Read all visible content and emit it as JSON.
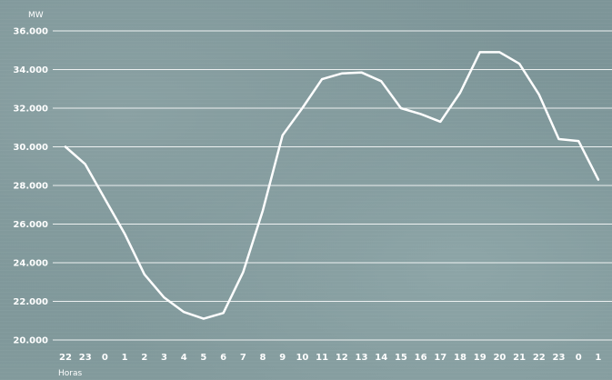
{
  "chart_data": {
    "type": "line",
    "title": "",
    "ylabel": "MW",
    "xlabel": "Horas",
    "ylim": [
      20000,
      36000
    ],
    "y_ticks": [
      20000,
      22000,
      24000,
      26000,
      28000,
      30000,
      32000,
      34000,
      36000
    ],
    "y_tick_labels": [
      "20.000",
      "22.000",
      "24.000",
      "26.000",
      "28.000",
      "30.000",
      "32.000",
      "34.000",
      "36.000"
    ],
    "categories": [
      "22",
      "23",
      "0",
      "1",
      "2",
      "3",
      "4",
      "5",
      "6",
      "7",
      "8",
      "9",
      "10",
      "11",
      "12",
      "13",
      "14",
      "15",
      "16",
      "17",
      "18",
      "19",
      "20",
      "21",
      "22",
      "23",
      "0",
      "1"
    ],
    "grid": true,
    "series": [
      {
        "values": [
          30000,
          29100,
          27300,
          25500,
          23400,
          22200,
          21450,
          21100,
          21400,
          23500,
          26700,
          30600,
          32000,
          33500,
          33800,
          33850,
          33400,
          32000,
          31700,
          31300,
          32800,
          34900,
          34900,
          34300,
          32700,
          30400,
          30300,
          28300
        ],
        "color": "#ffffff"
      }
    ]
  }
}
